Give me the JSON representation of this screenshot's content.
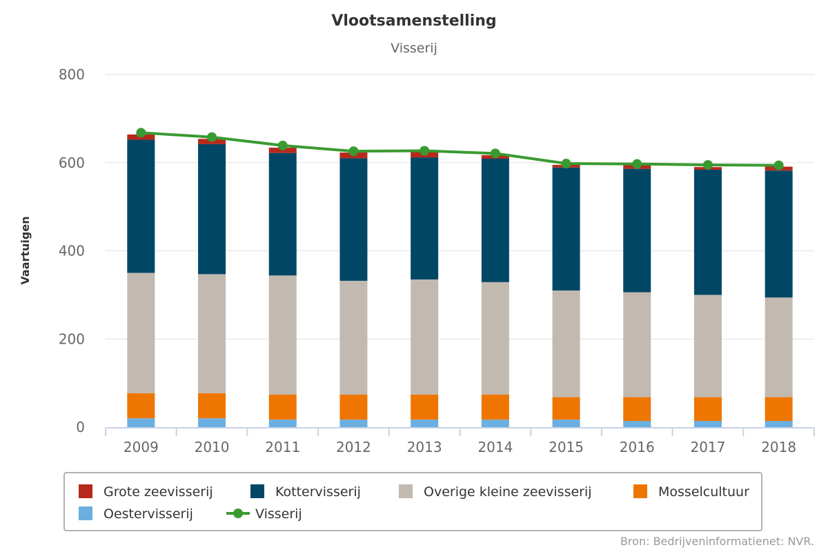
{
  "chart_data": {
    "type": "bar",
    "stacked": true,
    "title": "Vlootsamenstelling",
    "subtitle": "Visserij",
    "ylabel": "Vaartuigen",
    "xlabel": "",
    "ylim": [
      0,
      800
    ],
    "yticks": [
      0,
      200,
      400,
      600,
      800
    ],
    "categories": [
      "2009",
      "2010",
      "2011",
      "2012",
      "2013",
      "2014",
      "2015",
      "2016",
      "2017",
      "2018"
    ],
    "series": [
      {
        "name": "Oestervisserij",
        "color": "#6aafe0",
        "values": [
          20,
          20,
          17,
          17,
          17,
          17,
          17,
          14,
          14,
          14
        ]
      },
      {
        "name": "Mosselcultuur",
        "color": "#ee7600",
        "values": [
          57,
          57,
          57,
          57,
          57,
          57,
          51,
          54,
          54,
          54
        ]
      },
      {
        "name": "Overige kleine zeevisserij",
        "color": "#c2b9b0",
        "values": [
          273,
          270,
          270,
          258,
          261,
          255,
          242,
          238,
          232,
          226
        ]
      },
      {
        "name": "Kottervisserij",
        "color": "#004766",
        "values": [
          302,
          295,
          278,
          278,
          277,
          280,
          279,
          280,
          284,
          288
        ]
      },
      {
        "name": "Grote zeevisserij",
        "color": "#b52a1b",
        "values": [
          12,
          12,
          12,
          13,
          12,
          8,
          6,
          9,
          6,
          9
        ]
      }
    ],
    "line_series": {
      "name": "Visserij",
      "color": "#3a9a32",
      "values": [
        668,
        658,
        639,
        626,
        627,
        621,
        598,
        597,
        595,
        594
      ]
    },
    "legend": {
      "placement": "bottom",
      "order": [
        "Grote zeevisserij",
        "Kottervisserij",
        "Overige kleine zeevisserij",
        "Mosselcultuur",
        "Oestervisserij",
        "Visserij"
      ]
    },
    "grid": true,
    "source": "Bron: Bedrijveninformatienet: NVR."
  }
}
